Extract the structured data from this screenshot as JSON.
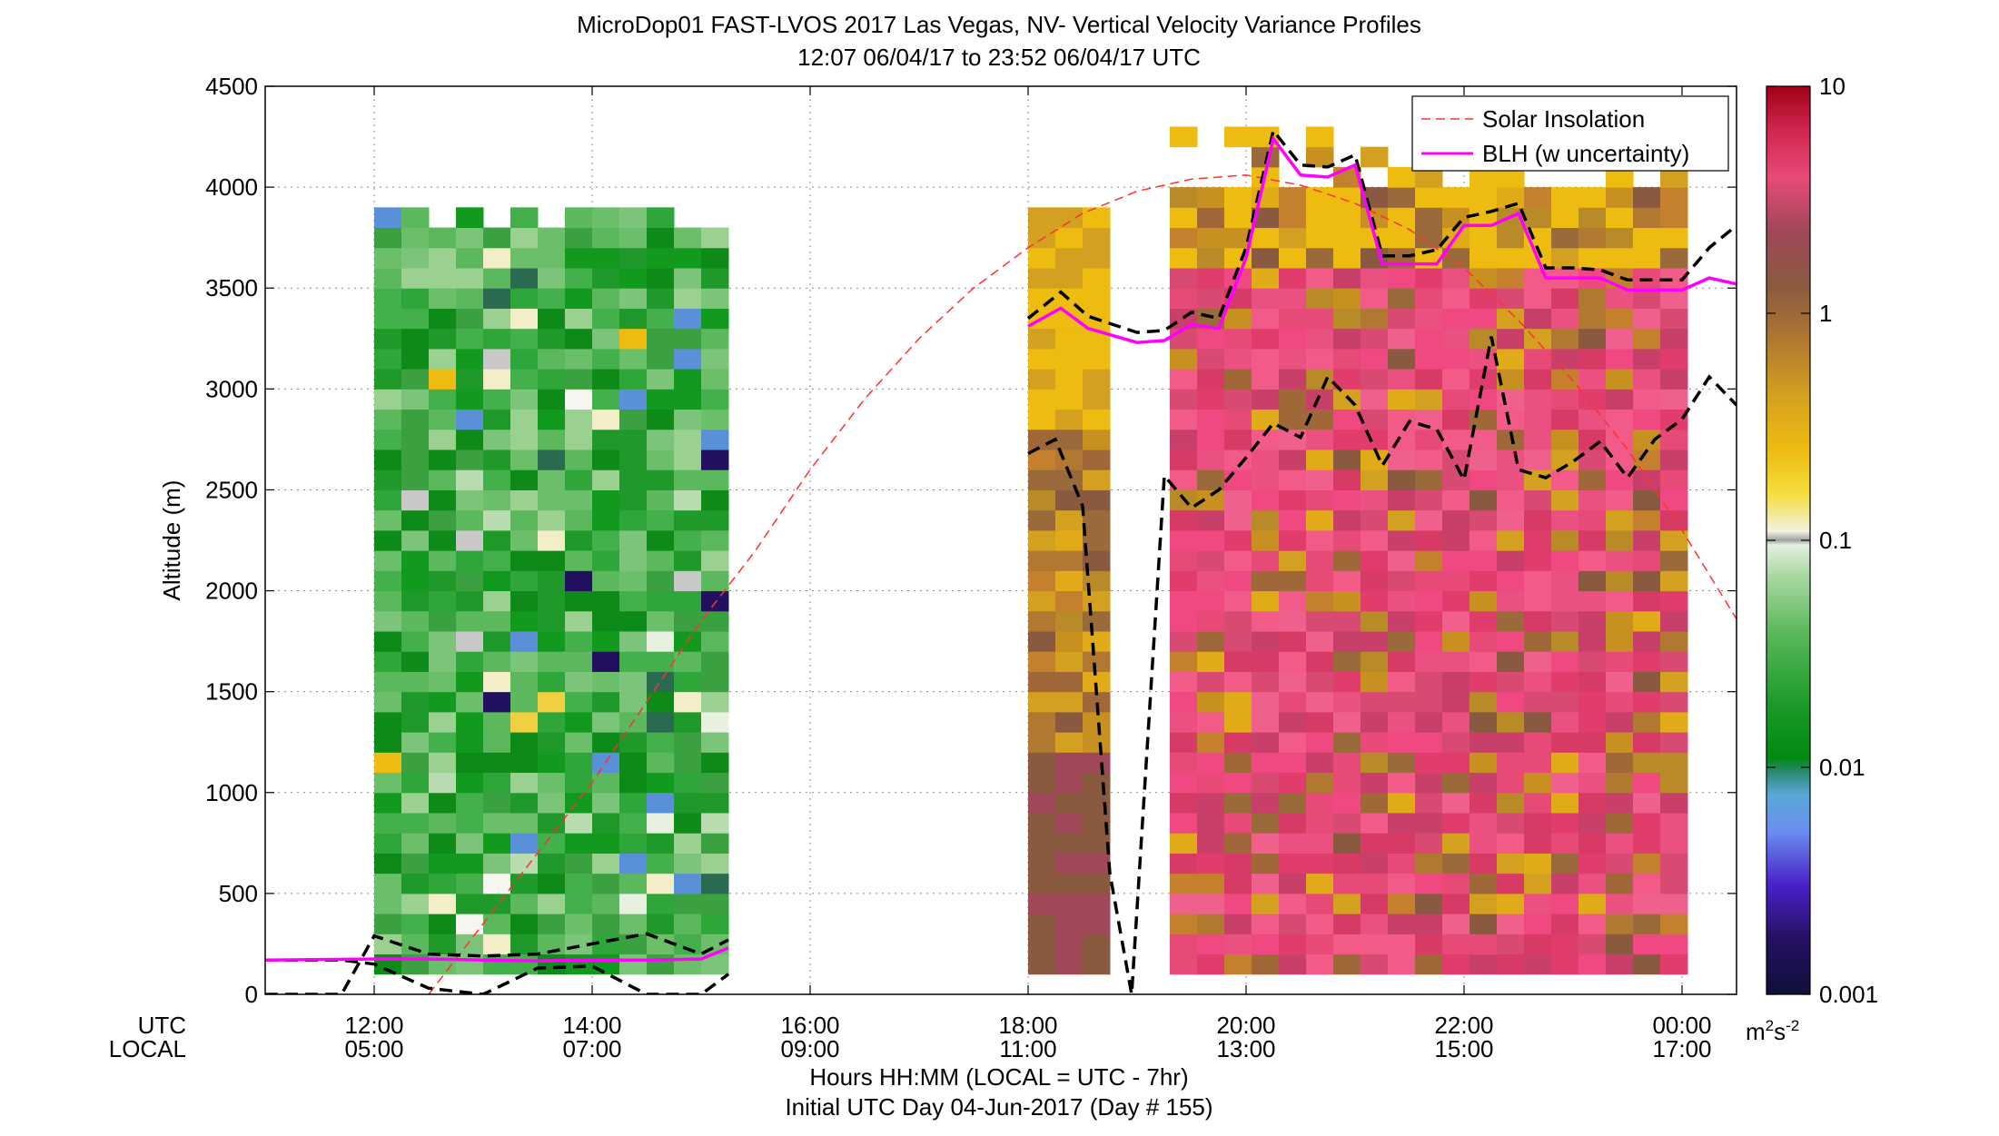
{
  "chart_data": {
    "type": "heatmap",
    "title": "MicroDop01 FAST-LVOS 2017 Las Vegas, NV- Vertical Velocity Variance Profiles",
    "subtitle": "12:07 06/04/17 to 23:52 06/04/17  UTC",
    "ylabel": "Altitude (m)",
    "xlabel": "Hours HH:MM  (LOCAL = UTC - 7hr)",
    "footer": "Initial UTC Day 04-Jun-2017 (Day # 155)",
    "xrange_hours": [
      11.0,
      24.5
    ],
    "ylim": [
      0,
      4500
    ],
    "y_ticks": [
      0,
      500,
      1000,
      1500,
      2000,
      2500,
      3000,
      3500,
      4000,
      4500
    ],
    "x_tick_hours": [
      12,
      14,
      16,
      18,
      20,
      22,
      24
    ],
    "x_row_labels": {
      "utc": "UTC",
      "local": "LOCAL"
    },
    "x_ticks_utc": [
      "12:00",
      "14:00",
      "16:00",
      "18:00",
      "20:00",
      "22:00",
      "00:00"
    ],
    "x_ticks_local": [
      "05:00",
      "07:00",
      "09:00",
      "11:00",
      "13:00",
      "15:00",
      "17:00"
    ],
    "grid": true,
    "legend": {
      "placement": "top-right",
      "entries": [
        {
          "label": "Solar Insolation",
          "color": "#ff3030",
          "style": "dashed"
        },
        {
          "label": "BLH (w uncertainty)",
          "color": "#ff00ff",
          "style": "solid"
        }
      ]
    },
    "colorbar": {
      "scale": "log",
      "range": [
        0.001,
        10
      ],
      "tick_labels": [
        "0.001",
        "0.01",
        "0.1",
        "1",
        "10"
      ],
      "unit": "m²s⁻²",
      "unit_base": "m",
      "unit_sup1": "2",
      "unit_mid": "s",
      "unit_sup2": "-2"
    },
    "heatmap_regions": [
      {
        "name": "morning",
        "hour_start": 12.0,
        "hour_end": 15.25,
        "alt_start": 100,
        "alt_end": 3900,
        "regime": "green"
      },
      {
        "name": "midday-early",
        "hour_start": 18.0,
        "hour_end": 18.6,
        "alt_start": 100,
        "alt_end": 3900,
        "regime": "brown-gold"
      },
      {
        "name": "afternoon",
        "hour_start": 19.3,
        "hour_end": 23.95,
        "alt_start": 100,
        "alt_end": 4250,
        "regime": "pink"
      }
    ],
    "series": [
      {
        "name": "BLH (w uncertainty)",
        "color": "#ff00ff",
        "x_hours": [
          11.0,
          12.0,
          12.5,
          13.0,
          13.5,
          14.0,
          14.5,
          15.0,
          15.25
        ],
        "y": [
          170,
          175,
          175,
          170,
          165,
          170,
          170,
          175,
          230
        ]
      },
      {
        "name": "BLH (w uncertainty) 2",
        "color": "#ff00ff",
        "x_hours": [
          18.0,
          18.3,
          18.55,
          19.0,
          19.25,
          19.5,
          19.75,
          20.0,
          20.25,
          20.5,
          20.75,
          21.0,
          21.25,
          21.5,
          21.75,
          22.0,
          22.25,
          22.5,
          22.75,
          23.0,
          23.25,
          23.5,
          23.75,
          24.0,
          24.25,
          24.5
        ],
        "y": [
          3310,
          3400,
          3300,
          3230,
          3240,
          3320,
          3300,
          3650,
          4240,
          4060,
          4050,
          4110,
          3620,
          3620,
          3620,
          3810,
          3810,
          3870,
          3550,
          3550,
          3550,
          3490,
          3490,
          3490,
          3550,
          3520
        ]
      }
    ],
    "blh_upper": {
      "x_hours": [
        18.0,
        18.3,
        18.55,
        19.0,
        19.25,
        19.5,
        19.75,
        20.0,
        20.25,
        20.5,
        20.75,
        21.0,
        21.25,
        21.5,
        21.75,
        22.0,
        22.25,
        22.5,
        22.75,
        23.0,
        23.25,
        23.5,
        23.75,
        24.0,
        24.25,
        24.5
      ],
      "y": [
        3350,
        3480,
        3360,
        3280,
        3290,
        3380,
        3350,
        3700,
        4280,
        4110,
        4100,
        4160,
        3660,
        3660,
        3690,
        3850,
        3880,
        3920,
        3600,
        3600,
        3590,
        3540,
        3540,
        3540,
        3700,
        3810
      ]
    },
    "blh_lower": {
      "x_hours": [
        18.0,
        18.25,
        18.5,
        18.75,
        18.95,
        19.25,
        19.5,
        19.75,
        20.0,
        20.25,
        20.5,
        20.75,
        21.0,
        21.25,
        21.5,
        21.75,
        22.0,
        22.25,
        22.5,
        22.75,
        23.0,
        23.25,
        23.5,
        23.75,
        24.0,
        24.25,
        24.5
      ],
      "y": [
        2680,
        2750,
        2420,
        600,
        0,
        2570,
        2410,
        2500,
        2660,
        2830,
        2760,
        3060,
        2920,
        2620,
        2840,
        2800,
        2550,
        3260,
        2600,
        2560,
        2640,
        2740,
        2560,
        2750,
        2850,
        3060,
        2920
      ]
    },
    "blh_morning_upper": {
      "x_hours": [
        11.0,
        11.7,
        12.0,
        12.5,
        13.0,
        13.5,
        14.0,
        14.5,
        15.0,
        15.25
      ],
      "y": [
        0,
        0,
        290,
        200,
        190,
        200,
        250,
        300,
        200,
        270
      ]
    },
    "blh_morning_lower": {
      "x_hours": [
        11.0,
        11.7,
        12.0,
        12.5,
        13.0,
        13.5,
        14.0,
        14.5,
        15.0,
        15.25
      ],
      "y": [
        170,
        170,
        150,
        30,
        0,
        130,
        140,
        0,
        0,
        100
      ]
    },
    "solar_insolation": {
      "color": "#ff3030",
      "x_hours": [
        12.5,
        13.0,
        13.5,
        14.0,
        14.5,
        15.0,
        15.5,
        16.0,
        16.5,
        17.0,
        17.5,
        18.0,
        18.5,
        19.0,
        19.5,
        20.0,
        20.5,
        21.0,
        21.5,
        22.0,
        22.5,
        23.0,
        23.5,
        24.0,
        24.5
      ],
      "y": [
        0,
        350,
        700,
        1050,
        1450,
        1850,
        2200,
        2600,
        2950,
        3250,
        3500,
        3700,
        3870,
        3980,
        4040,
        4060,
        4010,
        3920,
        3790,
        3600,
        3340,
        3040,
        2700,
        2300,
        1860
      ]
    }
  }
}
